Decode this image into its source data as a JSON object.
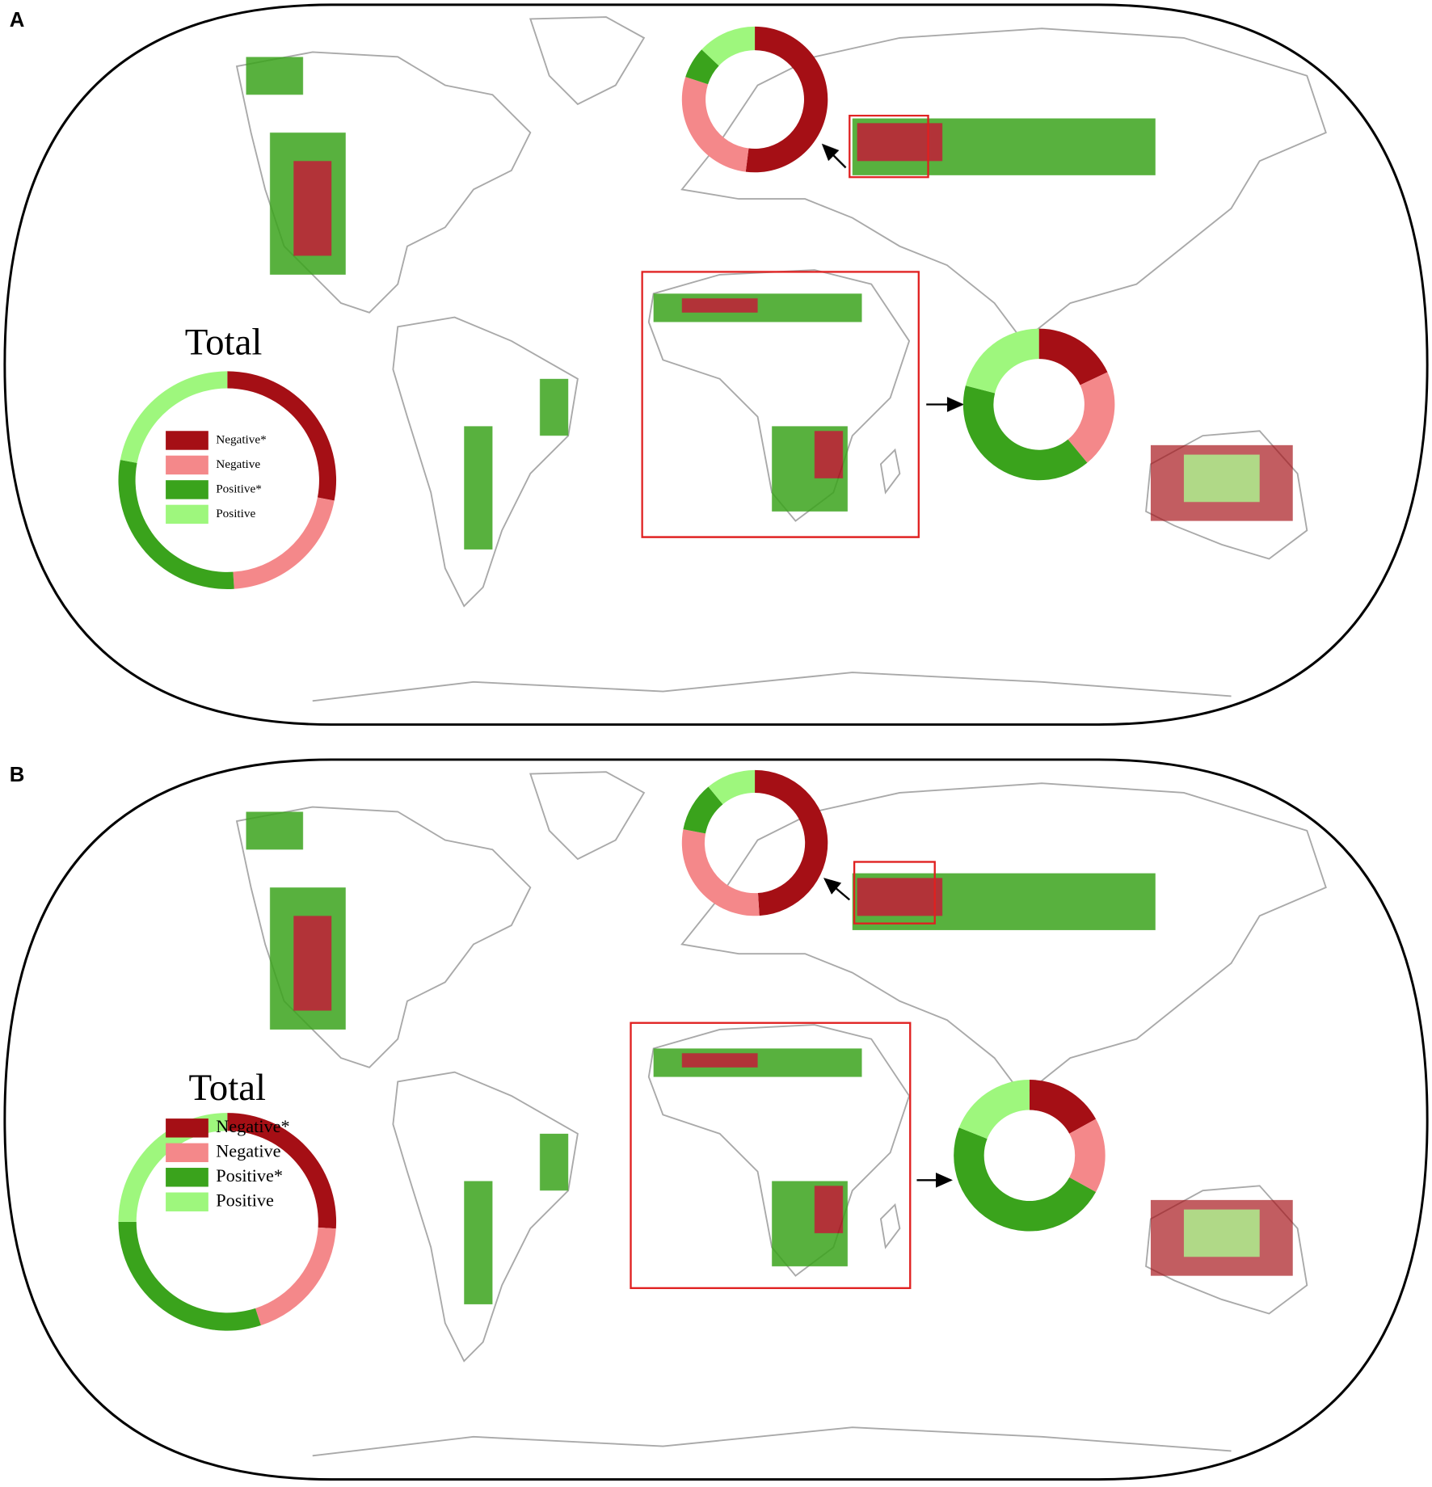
{
  "colors": [
    "#a50f15",
    "#f4888a",
    "#3aa31c",
    "#9ef77d"
  ],
  "panels": [
    {
      "label": "A",
      "legend": [
        "Negative*",
        "Negative",
        "Positive*",
        "Positive"
      ],
      "donuts": [
        {
          "title": "Total",
          "values": [
            28,
            21,
            29,
            22
          ]
        },
        {
          "values": [
            52,
            28,
            7,
            13
          ]
        },
        {
          "values": [
            18,
            21,
            40,
            21
          ]
        }
      ]
    },
    {
      "label": "B",
      "legend": [
        "Negative*",
        "Negative",
        "Positive*",
        "Positive"
      ],
      "donuts": [
        {
          "title": "Total",
          "values": [
            26,
            19,
            30,
            25
          ]
        },
        {
          "values": [
            49,
            29,
            11,
            11
          ]
        },
        {
          "values": [
            17,
            16,
            48,
            19
          ]
        }
      ]
    }
  ]
}
